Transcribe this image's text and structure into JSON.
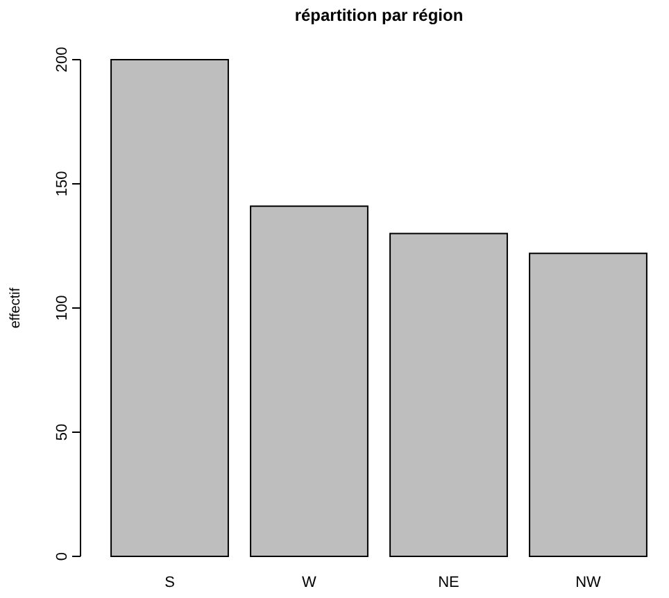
{
  "chart_data": {
    "type": "bar",
    "title": "répartition par région",
    "ylabel": "effectif",
    "categories": [
      "S",
      "W",
      "NE",
      "NW"
    ],
    "values": [
      200,
      141,
      130,
      122
    ],
    "color": "#bebebe",
    "ylim": [
      0,
      200
    ],
    "yticks": [
      0,
      50,
      100,
      150,
      200
    ],
    "grid": false
  }
}
